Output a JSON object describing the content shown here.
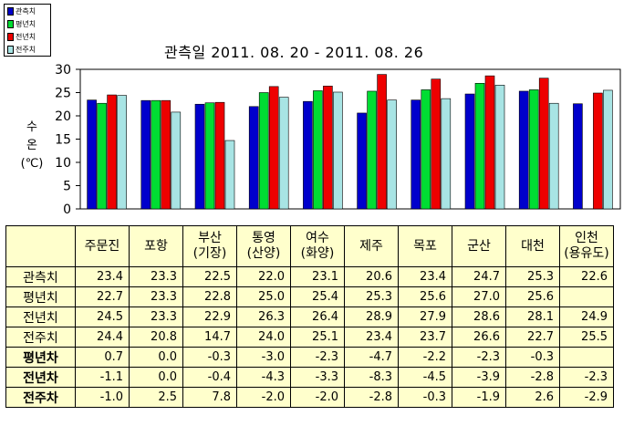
{
  "chart_data": {
    "type": "bar",
    "title": "관측일 2011. 08. 20 -  2011. 08. 26",
    "ylabel_lines": [
      "수",
      "온",
      "(℃)"
    ],
    "ylim": [
      0,
      30
    ],
    "yticks": [
      "0",
      "5",
      "10",
      "15",
      "20",
      "25",
      "30"
    ],
    "grid": false,
    "legend_position": "top-left",
    "categories": [
      "주문진",
      "포항",
      "부산\n(기장)",
      "통영\n(산양)",
      "여수\n(화양)",
      "제주",
      "목포",
      "군산",
      "대천",
      "인천\n(용유도)"
    ],
    "series": [
      {
        "name": "관측치",
        "color": "#0000cc",
        "values": [
          23.4,
          23.3,
          22.5,
          22.0,
          23.1,
          20.6,
          23.4,
          24.7,
          25.3,
          22.6
        ]
      },
      {
        "name": "평년치",
        "color": "#00dd33",
        "values": [
          22.7,
          23.3,
          22.8,
          25.0,
          25.4,
          25.3,
          25.6,
          27.0,
          25.6,
          null
        ]
      },
      {
        "name": "전년치",
        "color": "#ee0000",
        "values": [
          24.5,
          23.3,
          22.9,
          26.3,
          26.4,
          28.9,
          27.9,
          28.6,
          28.1,
          24.9
        ]
      },
      {
        "name": "전주치",
        "color": "#a8e4e4",
        "values": [
          24.4,
          20.8,
          14.7,
          24.0,
          25.1,
          23.4,
          23.7,
          26.6,
          22.7,
          25.5
        ]
      }
    ]
  },
  "table": {
    "headers": [
      "주문진",
      "포항",
      "부산\n(기장)",
      "통영\n(산양)",
      "여수\n(화양)",
      "제주",
      "목포",
      "군산",
      "대천",
      "인천\n(용유도)"
    ],
    "rows": [
      {
        "label": "관측치",
        "values": [
          "23.4",
          "23.3",
          "22.5",
          "22.0",
          "23.1",
          "20.6",
          "23.4",
          "24.7",
          "25.3",
          "22.6"
        ]
      },
      {
        "label": "평년치",
        "values": [
          "22.7",
          "23.3",
          "22.8",
          "25.0",
          "25.4",
          "25.3",
          "25.6",
          "27.0",
          "25.6",
          ""
        ]
      },
      {
        "label": "전년치",
        "values": [
          "24.5",
          "23.3",
          "22.9",
          "26.3",
          "26.4",
          "28.9",
          "27.9",
          "28.6",
          "28.1",
          "24.9"
        ]
      },
      {
        "label": "전주치",
        "values": [
          "24.4",
          "20.8",
          "14.7",
          "24.0",
          "25.1",
          "23.4",
          "23.7",
          "26.6",
          "22.7",
          "25.5"
        ]
      },
      {
        "label": "평년차",
        "values": [
          "0.7",
          "0.0",
          "-0.3",
          "-3.0",
          "-2.3",
          "-4.7",
          "-2.2",
          "-2.3",
          "-0.3",
          ""
        ]
      },
      {
        "label": "전년차",
        "values": [
          "-1.1",
          "0.0",
          "-0.4",
          "-4.3",
          "-3.3",
          "-8.3",
          "-4.5",
          "-3.9",
          "-2.8",
          "-2.3"
        ]
      },
      {
        "label": "전주차",
        "values": [
          "-1.0",
          "2.5",
          "7.8",
          "-2.0",
          "-2.0",
          "-2.8",
          "-0.3",
          "-1.9",
          "2.6",
          "-2.9"
        ]
      }
    ]
  }
}
